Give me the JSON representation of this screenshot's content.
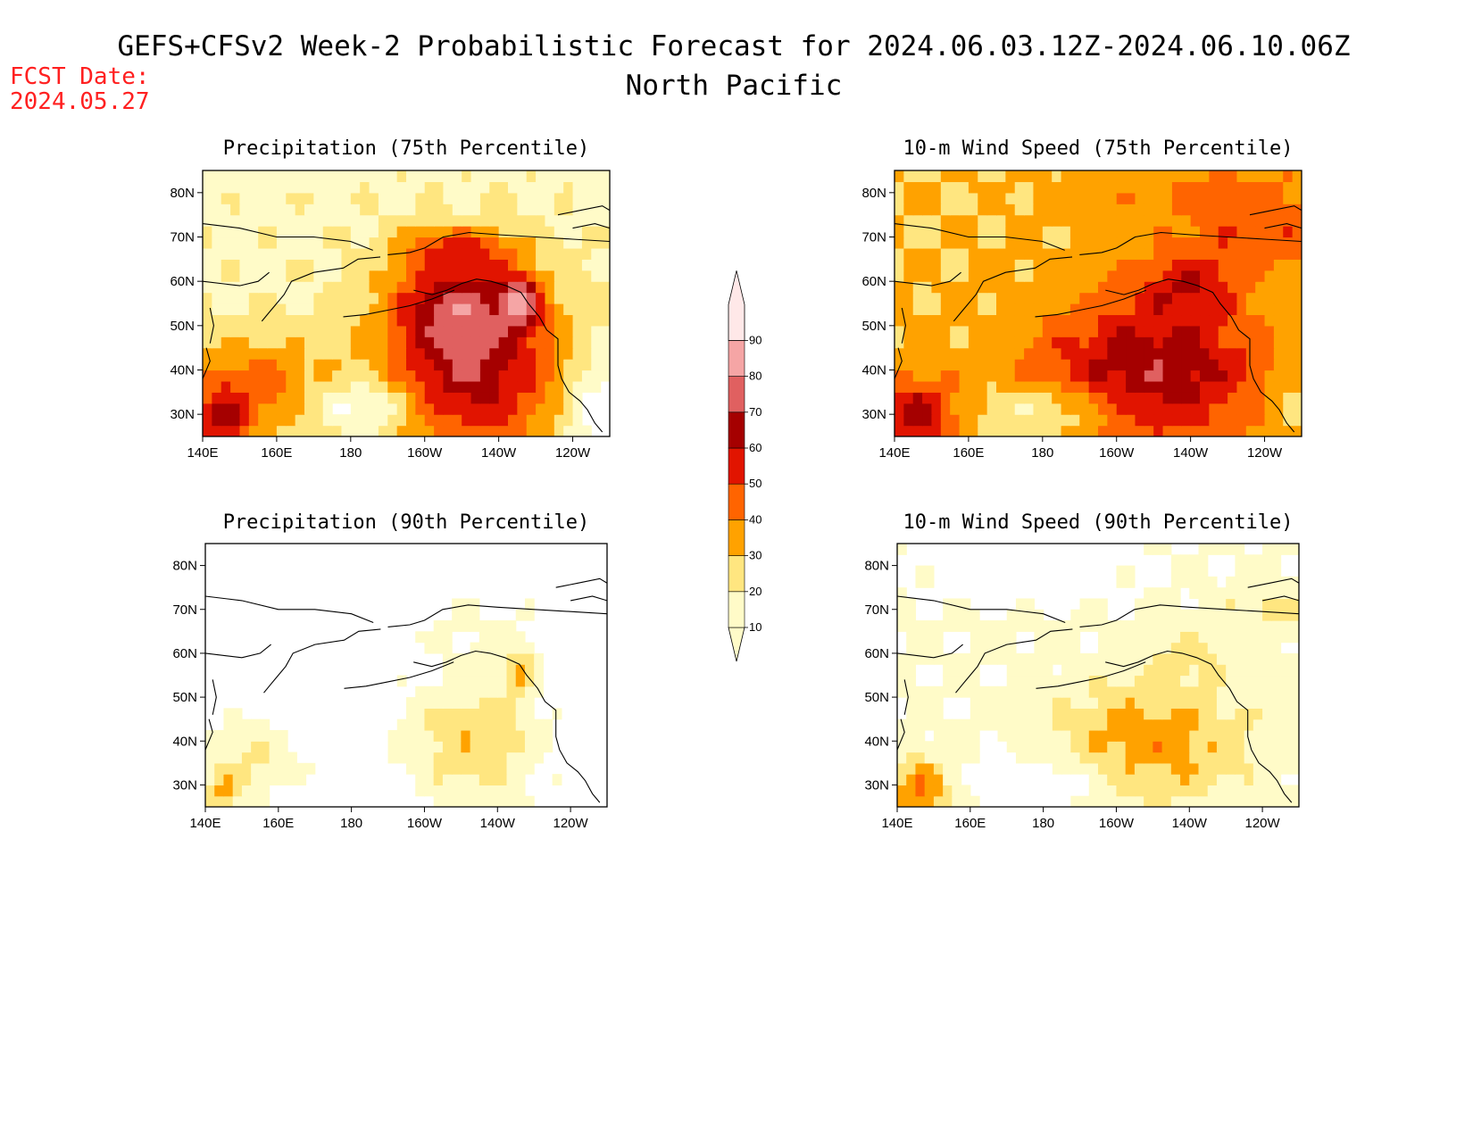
{
  "header": {
    "title": "GEFS+CFSv2 Week-2 Probabilistic Forecast for 2024.06.03.12Z-2024.06.10.06Z",
    "subtitle": "North Pacific",
    "fcst_label": "FCST Date:",
    "fcst_date": "2024.05.27"
  },
  "colors": {
    "levels": [
      "#fffbc8",
      "#ffe680",
      "#ffa200",
      "#ff6400",
      "#e11400",
      "#a50000",
      "#e06060",
      "#f5a5a5",
      "#ffe8e8"
    ],
    "coast": "#000000"
  },
  "colorbar": {
    "labels": [
      "10",
      "20",
      "30",
      "40",
      "50",
      "60",
      "70",
      "80",
      "90"
    ]
  },
  "axes": {
    "x_ticks": [
      "140E",
      "160E",
      "180",
      "160W",
      "140W",
      "120W"
    ],
    "y_ticks": [
      "80N",
      "70N",
      "60N",
      "50N",
      "40N",
      "30N"
    ]
  },
  "chart_data": [
    {
      "type": "heatmap",
      "title": "Precipitation (75th Percentile)",
      "lon_range": [
        140,
        250
      ],
      "lat_range": [
        25,
        85
      ],
      "blobs": [
        {
          "lon": 213,
          "lat": 40,
          "sx": 18,
          "sy": 14,
          "amp": 48
        },
        {
          "lon": 208,
          "lat": 56,
          "sx": 12,
          "sy": 8,
          "amp": 32
        },
        {
          "lon": 226,
          "lat": 56,
          "sx": 4,
          "sy": 4,
          "amp": 38
        },
        {
          "lon": 152,
          "lat": 36,
          "sx": 14,
          "sy": 8,
          "amp": 28
        },
        {
          "lon": 145,
          "lat": 28,
          "sx": 5,
          "sy": 5,
          "amp": 30
        },
        {
          "lon": 210,
          "lat": 68,
          "sx": 12,
          "sy": 3,
          "amp": 20
        },
        {
          "lon": 185,
          "lat": 32,
          "sx": 10,
          "sy": 4,
          "amp": -22
        },
        {
          "lon": 247,
          "lat": 32,
          "sx": 7,
          "sy": 8,
          "amp": -20
        }
      ],
      "base": 18
    },
    {
      "type": "heatmap",
      "title": "10-m Wind Speed (75th Percentile)",
      "lon_range": [
        140,
        250
      ],
      "lat_range": [
        25,
        85
      ],
      "blobs": [
        {
          "lon": 210,
          "lat": 40,
          "sx": 22,
          "sy": 12,
          "amp": 38
        },
        {
          "lon": 220,
          "lat": 60,
          "sx": 10,
          "sy": 5,
          "amp": 22
        },
        {
          "lon": 146,
          "lat": 30,
          "sx": 8,
          "sy": 6,
          "amp": 35
        },
        {
          "lon": 240,
          "lat": 70,
          "sx": 14,
          "sy": 5,
          "amp": 15
        },
        {
          "lon": 230,
          "lat": 80,
          "sx": 25,
          "sy": 6,
          "amp": 12
        },
        {
          "lon": 182,
          "lat": 31,
          "sx": 14,
          "sy": 4,
          "amp": -20
        },
        {
          "lon": 248,
          "lat": 34,
          "sx": 6,
          "sy": 6,
          "amp": -8
        }
      ],
      "base": 30
    },
    {
      "type": "heatmap",
      "title": "Precipitation (90th Percentile)",
      "lon_range": [
        140,
        250
      ],
      "lat_range": [
        25,
        85
      ],
      "blobs": [
        {
          "lon": 213,
          "lat": 40,
          "sx": 14,
          "sy": 11,
          "amp": 26
        },
        {
          "lon": 226,
          "lat": 56,
          "sx": 3,
          "sy": 4,
          "amp": 25
        },
        {
          "lon": 152,
          "lat": 36,
          "sx": 12,
          "sy": 7,
          "amp": 18
        },
        {
          "lon": 145,
          "lat": 28,
          "sx": 4,
          "sy": 4,
          "amp": 22
        },
        {
          "lon": 215,
          "lat": 66,
          "sx": 18,
          "sy": 6,
          "amp": 8
        }
      ],
      "base": 2
    },
    {
      "type": "heatmap",
      "title": "10-m Wind Speed (90th Percentile)",
      "lon_range": [
        140,
        250
      ],
      "lat_range": [
        25,
        85
      ],
      "blobs": [
        {
          "lon": 210,
          "lat": 40,
          "sx": 18,
          "sy": 10,
          "amp": 26
        },
        {
          "lon": 146,
          "lat": 29,
          "sx": 6,
          "sy": 5,
          "amp": 30
        },
        {
          "lon": 242,
          "lat": 70,
          "sx": 10,
          "sy": 4,
          "amp": 12
        },
        {
          "lon": 220,
          "lat": 60,
          "sx": 8,
          "sy": 4,
          "amp": 10
        },
        {
          "lon": 182,
          "lat": 31,
          "sx": 14,
          "sy": 4,
          "amp": -12
        },
        {
          "lon": 175,
          "lat": 80,
          "sx": 20,
          "sy": 5,
          "amp": -10
        }
      ],
      "base": 11
    }
  ]
}
